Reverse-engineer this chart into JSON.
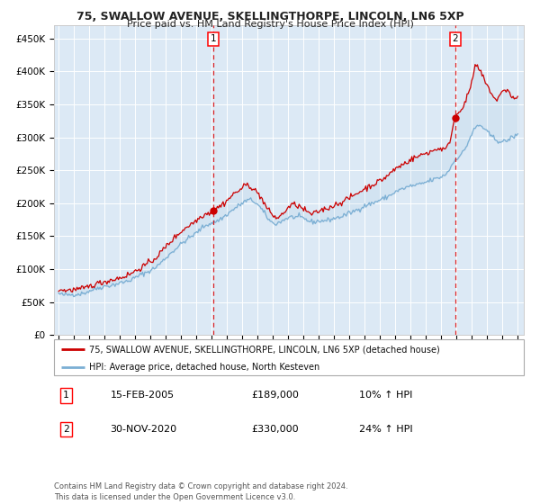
{
  "title": "75, SWALLOW AVENUE, SKELLINGTHORPE, LINCOLN, LN6 5XP",
  "subtitle": "Price paid vs. HM Land Registry's House Price Index (HPI)",
  "background_color": "#ffffff",
  "plot_bg_color": "#dce9f5",
  "hpi_color": "#7bafd4",
  "price_color": "#cc0000",
  "ylim": [
    0,
    470000
  ],
  "xlim_start": 1994.7,
  "xlim_end": 2025.4,
  "yticks": [
    0,
    50000,
    100000,
    150000,
    200000,
    250000,
    300000,
    350000,
    400000,
    450000
  ],
  "ytick_labels": [
    "£0",
    "£50K",
    "£100K",
    "£150K",
    "£200K",
    "£250K",
    "£300K",
    "£350K",
    "£400K",
    "£450K"
  ],
  "sale1_x": 2005.12,
  "sale1_y": 189000,
  "sale1_label": "1",
  "sale1_date": "15-FEB-2005",
  "sale1_price": "£189,000",
  "sale1_hpi": "10% ↑ HPI",
  "sale2_x": 2020.92,
  "sale2_y": 330000,
  "sale2_label": "2",
  "sale2_date": "30-NOV-2020",
  "sale2_price": "£330,000",
  "sale2_hpi": "24% ↑ HPI",
  "legend_label_red": "75, SWALLOW AVENUE, SKELLINGTHORPE, LINCOLN, LN6 5XP (detached house)",
  "legend_label_blue": "HPI: Average price, detached house, North Kesteven",
  "footer": "Contains HM Land Registry data © Crown copyright and database right 2024.\nThis data is licensed under the Open Government Licence v3.0.",
  "grid_color": "#ffffff",
  "hatch_start": 2021.5
}
